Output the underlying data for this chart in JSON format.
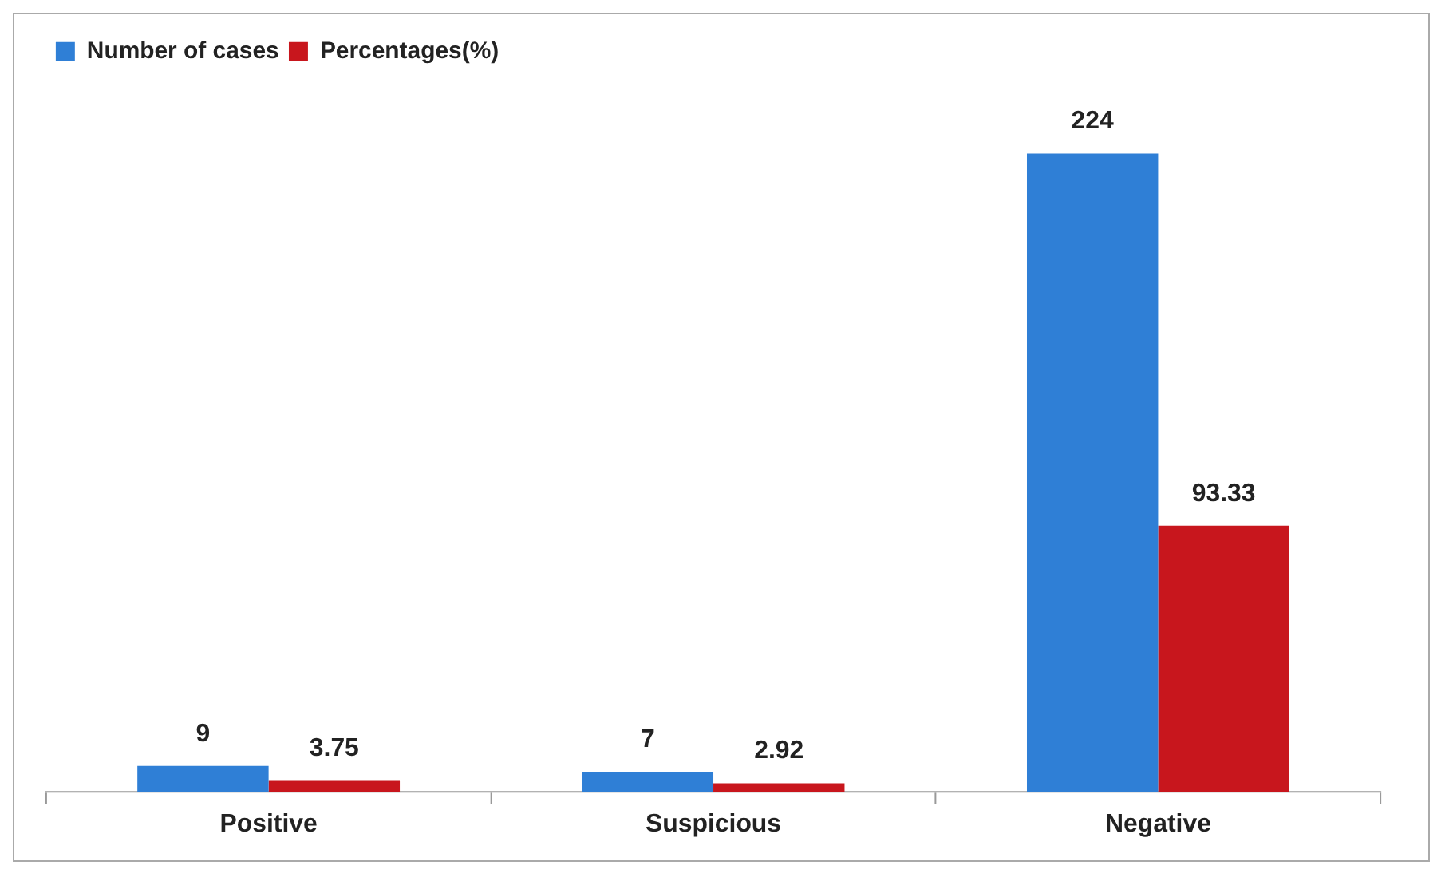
{
  "chart_data": {
    "type": "bar",
    "categories": [
      "Positive",
      "Suspicious",
      "Negative"
    ],
    "series": [
      {
        "name": "Number of cases",
        "color": "#2f7fd6",
        "values": [
          9,
          7,
          224
        ]
      },
      {
        "name": "Percentages(%)",
        "color": "#c8161d",
        "values": [
          3.75,
          2.92,
          93.33
        ]
      }
    ],
    "tick_labels": "x",
    "data_labels": true,
    "legend": "top left"
  }
}
